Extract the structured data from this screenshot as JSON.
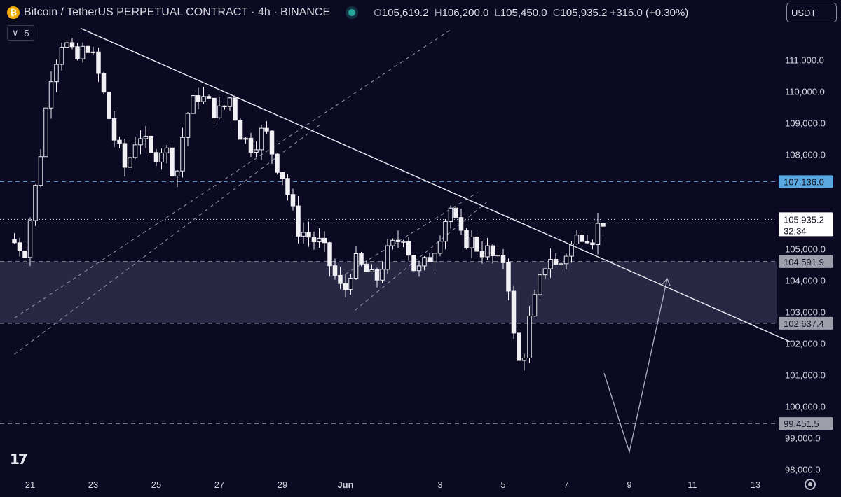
{
  "header": {
    "symbol_title": "Bitcoin / TetherUS PERPETUAL CONTRACT · 4h · BINANCE",
    "coin_glyph": "₿",
    "ohlc": {
      "o_label": "O",
      "o": "105,619.2",
      "h_label": "H",
      "h": "106,200.0",
      "l_label": "L",
      "l": "105,450.0",
      "c_label": "C",
      "c": "105,935.2",
      "change": "+316.0 (+0.30%)"
    }
  },
  "interval_badge": {
    "chevron": "∨",
    "value": "5"
  },
  "currency_selector": {
    "value": "USDT"
  },
  "logo_text": "17",
  "chart_data": {
    "type": "candlestick",
    "y_axis": {
      "range": [
        97400,
        112300
      ],
      "ticks": [
        {
          "value": 111000,
          "label": "111,000.0"
        },
        {
          "value": 110000,
          "label": "110,000.0"
        },
        {
          "value": 109000,
          "label": "109,000.0"
        },
        {
          "value": 108000,
          "label": "108,000.0"
        },
        {
          "value": 105000,
          "label": "105,000.0"
        },
        {
          "value": 104000,
          "label": "104,000.0"
        },
        {
          "value": 103000,
          "label": "103,000.0"
        },
        {
          "value": 102000,
          "label": "102,000.0"
        },
        {
          "value": 101000,
          "label": "101,000.0"
        },
        {
          "value": 100000,
          "label": "100,000.0"
        },
        {
          "value": 99000,
          "label": "99,000.0"
        },
        {
          "value": 98000,
          "label": "98,000.0"
        }
      ]
    },
    "x_axis": {
      "range": [
        20.5,
        15.5
      ],
      "ticks": [
        {
          "value": 21,
          "label": "21"
        },
        {
          "value": 23,
          "label": "23"
        },
        {
          "value": 25,
          "label": "25"
        },
        {
          "value": 27,
          "label": "27"
        },
        {
          "value": 29,
          "label": "29"
        },
        {
          "value": 31,
          "label": "Jun"
        },
        {
          "value": 34,
          "label": "3"
        },
        {
          "value": 36,
          "label": "5"
        },
        {
          "value": 38,
          "label": "7"
        },
        {
          "value": 40,
          "label": "9"
        },
        {
          "value": 42,
          "label": "11"
        },
        {
          "value": 44,
          "label": "13"
        }
      ]
    },
    "x_domain": [
      20.5,
      45.5
    ],
    "price_labels": [
      {
        "value": 107136.0,
        "label": "107,136.0",
        "style": "blue"
      },
      {
        "value": 105935.2,
        "label": "105,935.2",
        "countdown": "32:34",
        "style": "current"
      },
      {
        "value": 104591.9,
        "label": "104,591.9",
        "style": "gray"
      },
      {
        "value": 102637.4,
        "label": "102,637.4",
        "style": "gray"
      },
      {
        "value": 99451.5,
        "label": "99,451.5",
        "style": "gray"
      }
    ],
    "zone": {
      "from": 102637.4,
      "to": 104591.9
    },
    "trendline": {
      "p1": [
        22.6,
        112000
      ],
      "p2": [
        45.1,
        102050
      ]
    },
    "channel_lines": [
      {
        "p1": [
          20.5,
          102800
        ],
        "p2": [
          34.4,
          112000
        ]
      },
      {
        "p1": [
          20.5,
          101650
        ],
        "p2": [
          30.2,
          108950
        ]
      },
      {
        "p1": [
          31.3,
          103050
        ],
        "p2": [
          35.5,
          106500
        ]
      },
      {
        "p1": [
          31.0,
          104200
        ],
        "p2": [
          35.2,
          106800
        ]
      }
    ],
    "projection": [
      [
        39.2,
        101050
      ],
      [
        40.0,
        98550
      ],
      [
        41.2,
        104050
      ]
    ],
    "candles": []
  }
}
